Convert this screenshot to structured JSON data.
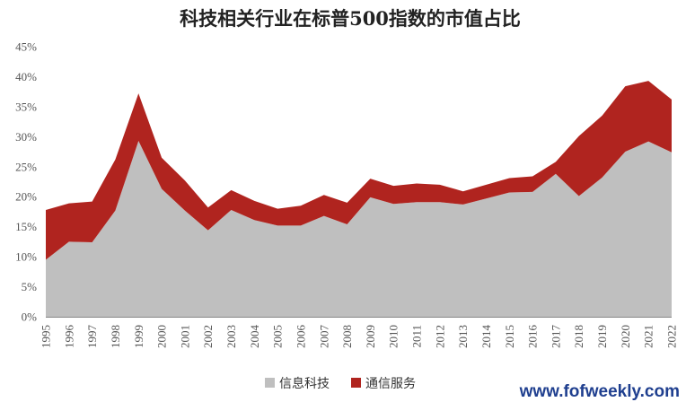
{
  "chart_data": {
    "type": "area",
    "stacked": true,
    "title": "科技相关行业在标普500指数的市值占比",
    "xlabel": "",
    "ylabel": "",
    "x": [
      "1995",
      "1996",
      "1997",
      "1998",
      "1999",
      "2000",
      "2001",
      "2002",
      "2003",
      "2004",
      "2005",
      "2006",
      "2007",
      "2008",
      "2009",
      "2010",
      "2011",
      "2012",
      "2013",
      "2014",
      "2015",
      "2016",
      "2017",
      "2018",
      "2019",
      "2020",
      "2021",
      "2022"
    ],
    "ylim": [
      0,
      45
    ],
    "yticks": [
      "0%",
      "5%",
      "10%",
      "15%",
      "20%",
      "25%",
      "30%",
      "35%",
      "40%",
      "45%"
    ],
    "series": [
      {
        "name": "信息科技",
        "color": "#bfbfbf",
        "values": [
          9.5,
          12.5,
          12.4,
          17.7,
          29.3,
          21.3,
          17.7,
          14.4,
          17.8,
          16.1,
          15.2,
          15.2,
          16.8,
          15.4,
          19.9,
          18.8,
          19.1,
          19.1,
          18.7,
          19.7,
          20.7,
          20.8,
          23.8,
          20.1,
          23.2,
          27.5,
          29.2,
          27.4
        ]
      },
      {
        "name": "通信服务",
        "color": "#b0241f",
        "values": [
          8.3,
          6.4,
          6.8,
          8.5,
          7.9,
          5.2,
          5.0,
          3.8,
          3.3,
          3.2,
          2.8,
          3.3,
          3.5,
          3.6,
          3.1,
          3.0,
          3.1,
          2.9,
          2.2,
          2.3,
          2.4,
          2.6,
          2.0,
          10.0,
          10.3,
          10.9,
          10.1,
          8.8
        ]
      }
    ],
    "grid": false,
    "legend_position": "bottom-center"
  },
  "watermark": "www.fofweekly.com"
}
